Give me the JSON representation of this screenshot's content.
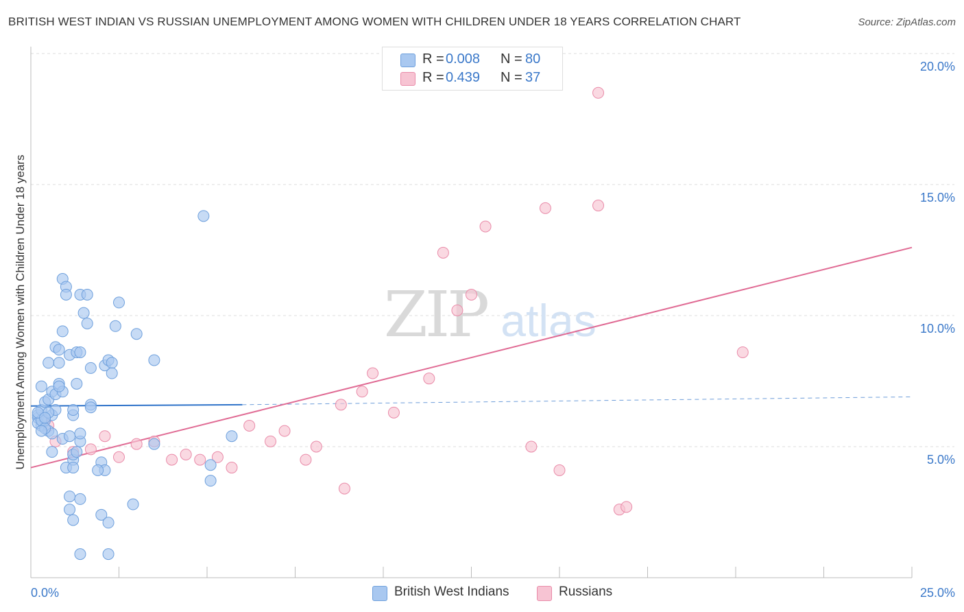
{
  "header": {
    "title": "BRITISH WEST INDIAN VS RUSSIAN UNEMPLOYMENT AMONG WOMEN WITH CHILDREN UNDER 18 YEARS CORRELATION CHART",
    "source": "Source: ZipAtlas.com"
  },
  "legend": {
    "rows": [
      {
        "r_label": "R =",
        "r_value": "0.008",
        "n_label": "N =",
        "n_value": "80",
        "color": "#a9c8f0",
        "border": "#6d9fdc"
      },
      {
        "r_label": "R =",
        "r_value": "0.439",
        "n_label": "N =",
        "n_value": "37",
        "color": "#f7c4d3",
        "border": "#e98aa8"
      }
    ]
  },
  "bottom_legend": {
    "items": [
      {
        "label": "British West Indians",
        "color": "#a9c8f0",
        "border": "#6d9fdc"
      },
      {
        "label": "Russians",
        "color": "#f7c4d3",
        "border": "#e98aa8"
      }
    ]
  },
  "watermark": {
    "zip": "ZIP",
    "atlas": "atlas"
  },
  "chart_data": {
    "type": "scatter",
    "title": "BRITISH WEST INDIAN VS RUSSIAN UNEMPLOYMENT AMONG WOMEN WITH CHILDREN UNDER 18 YEARS CORRELATION CHART",
    "xlabel": "",
    "ylabel": "Unemployment Among Women with Children Under 18 years",
    "xlim": [
      0,
      25
    ],
    "ylim": [
      0,
      20
    ],
    "x_tick_labels": [
      {
        "value": 0,
        "label": "0.0%"
      },
      {
        "value": 25,
        "label": "25.0%"
      }
    ],
    "y_tick_labels": [
      {
        "value": 5,
        "label": "5.0%"
      },
      {
        "value": 10,
        "label": "10.0%"
      },
      {
        "value": 15,
        "label": "15.0%"
      },
      {
        "value": 20,
        "label": "20.0%"
      }
    ],
    "grid": true,
    "legend_position": "top-center",
    "series": [
      {
        "name": "British West Indians",
        "color": "#6d9fdc",
        "fill": "#a9c8f0",
        "points": [
          [
            0.2,
            6.1
          ],
          [
            0.3,
            5.8
          ],
          [
            0.2,
            6.2
          ],
          [
            0.3,
            6.4
          ],
          [
            0.4,
            6.0
          ],
          [
            0.5,
            5.6
          ],
          [
            0.6,
            6.2
          ],
          [
            0.4,
            6.7
          ],
          [
            0.5,
            6.8
          ],
          [
            0.6,
            7.1
          ],
          [
            0.7,
            6.4
          ],
          [
            0.8,
            7.4
          ],
          [
            0.6,
            5.5
          ],
          [
            0.3,
            7.3
          ],
          [
            0.7,
            7.0
          ],
          [
            0.9,
            7.1
          ],
          [
            0.8,
            7.3
          ],
          [
            0.5,
            8.2
          ],
          [
            0.7,
            8.8
          ],
          [
            0.8,
            8.7
          ],
          [
            0.9,
            9.4
          ],
          [
            0.8,
            8.2
          ],
          [
            1.1,
            8.5
          ],
          [
            1.3,
            8.6
          ],
          [
            1.4,
            8.6
          ],
          [
            0.9,
            11.4
          ],
          [
            1.0,
            11.1
          ],
          [
            1.0,
            10.8
          ],
          [
            1.4,
            10.8
          ],
          [
            1.6,
            10.8
          ],
          [
            1.5,
            10.1
          ],
          [
            1.6,
            9.7
          ],
          [
            2.5,
            10.5
          ],
          [
            2.4,
            9.6
          ],
          [
            3.0,
            9.3
          ],
          [
            1.7,
            8.0
          ],
          [
            2.1,
            8.1
          ],
          [
            2.2,
            8.3
          ],
          [
            2.3,
            8.2
          ],
          [
            2.3,
            7.8
          ],
          [
            1.2,
            6.2
          ],
          [
            1.2,
            6.4
          ],
          [
            1.3,
            7.4
          ],
          [
            1.7,
            6.6
          ],
          [
            1.7,
            6.5
          ],
          [
            0.9,
            5.3
          ],
          [
            1.1,
            5.4
          ],
          [
            1.4,
            5.2
          ],
          [
            1.4,
            5.5
          ],
          [
            2.0,
            4.4
          ],
          [
            1.2,
            4.5
          ],
          [
            1.2,
            4.7
          ],
          [
            1.0,
            4.2
          ],
          [
            1.2,
            4.2
          ],
          [
            2.1,
            4.1
          ],
          [
            1.9,
            4.1
          ],
          [
            3.5,
            5.1
          ],
          [
            2.9,
            2.8
          ],
          [
            1.1,
            3.1
          ],
          [
            1.4,
            3.0
          ],
          [
            1.1,
            2.6
          ],
          [
            1.2,
            2.2
          ],
          [
            2.0,
            2.4
          ],
          [
            2.2,
            2.1
          ],
          [
            1.4,
            0.9
          ],
          [
            2.2,
            0.9
          ],
          [
            4.9,
            13.8
          ],
          [
            3.5,
            8.3
          ],
          [
            5.1,
            4.3
          ],
          [
            5.1,
            3.7
          ],
          [
            5.7,
            5.4
          ],
          [
            0.2,
            5.9
          ],
          [
            0.3,
            6.0
          ],
          [
            0.4,
            5.7
          ],
          [
            0.5,
            6.3
          ],
          [
            0.6,
            4.8
          ],
          [
            0.2,
            6.3
          ],
          [
            0.4,
            6.1
          ],
          [
            1.3,
            4.8
          ],
          [
            0.3,
            5.6
          ]
        ],
        "trend": {
          "x": [
            0,
            6
          ],
          "y": [
            6.55,
            6.6
          ],
          "dashed_to": [
            25,
            6.9
          ]
        }
      },
      {
        "name": "Russians",
        "color": "#e98aa8",
        "fill": "#f7c4d3",
        "points": [
          [
            0.4,
            6.0
          ],
          [
            0.5,
            5.8
          ],
          [
            0.7,
            5.2
          ],
          [
            1.2,
            4.8
          ],
          [
            1.7,
            4.9
          ],
          [
            2.1,
            5.4
          ],
          [
            2.5,
            4.6
          ],
          [
            3.0,
            5.1
          ],
          [
            3.5,
            5.2
          ],
          [
            4.0,
            4.5
          ],
          [
            4.4,
            4.7
          ],
          [
            4.8,
            4.5
          ],
          [
            5.3,
            4.6
          ],
          [
            5.7,
            4.2
          ],
          [
            6.2,
            5.8
          ],
          [
            6.8,
            5.2
          ],
          [
            7.2,
            5.6
          ],
          [
            7.8,
            4.5
          ],
          [
            8.1,
            5.0
          ],
          [
            8.8,
            6.6
          ],
          [
            8.9,
            3.4
          ],
          [
            9.4,
            7.1
          ],
          [
            9.7,
            7.8
          ],
          [
            10.3,
            6.3
          ],
          [
            11.3,
            7.6
          ],
          [
            11.7,
            12.4
          ],
          [
            12.1,
            10.2
          ],
          [
            12.5,
            10.8
          ],
          [
            12.9,
            13.4
          ],
          [
            14.2,
            5.0
          ],
          [
            14.6,
            14.1
          ],
          [
            15.0,
            4.1
          ],
          [
            16.1,
            14.2
          ],
          [
            16.1,
            18.5
          ],
          [
            16.7,
            2.6
          ],
          [
            16.9,
            2.7
          ],
          [
            20.2,
            8.6
          ]
        ],
        "trend": {
          "x": [
            0,
            25
          ],
          "y": [
            4.2,
            12.6
          ]
        }
      }
    ]
  }
}
